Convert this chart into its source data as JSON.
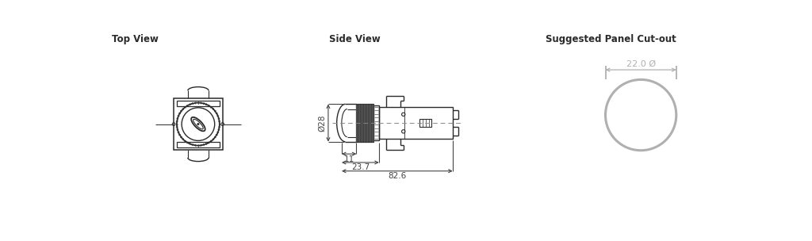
{
  "bg_color": "#ffffff",
  "line_color": "#2a2a2a",
  "dim_color": "#444444",
  "gray_color": "#b0b0b0",
  "title_top_view": "Top View",
  "title_side_view": "Side View",
  "title_cutout": "Suggested Panel Cut-out",
  "dim_028": "Ø28",
  "dim_11": "11",
  "dim_237": "23.7",
  "dim_826": "82.6",
  "dim_220": "22.0 Ø"
}
